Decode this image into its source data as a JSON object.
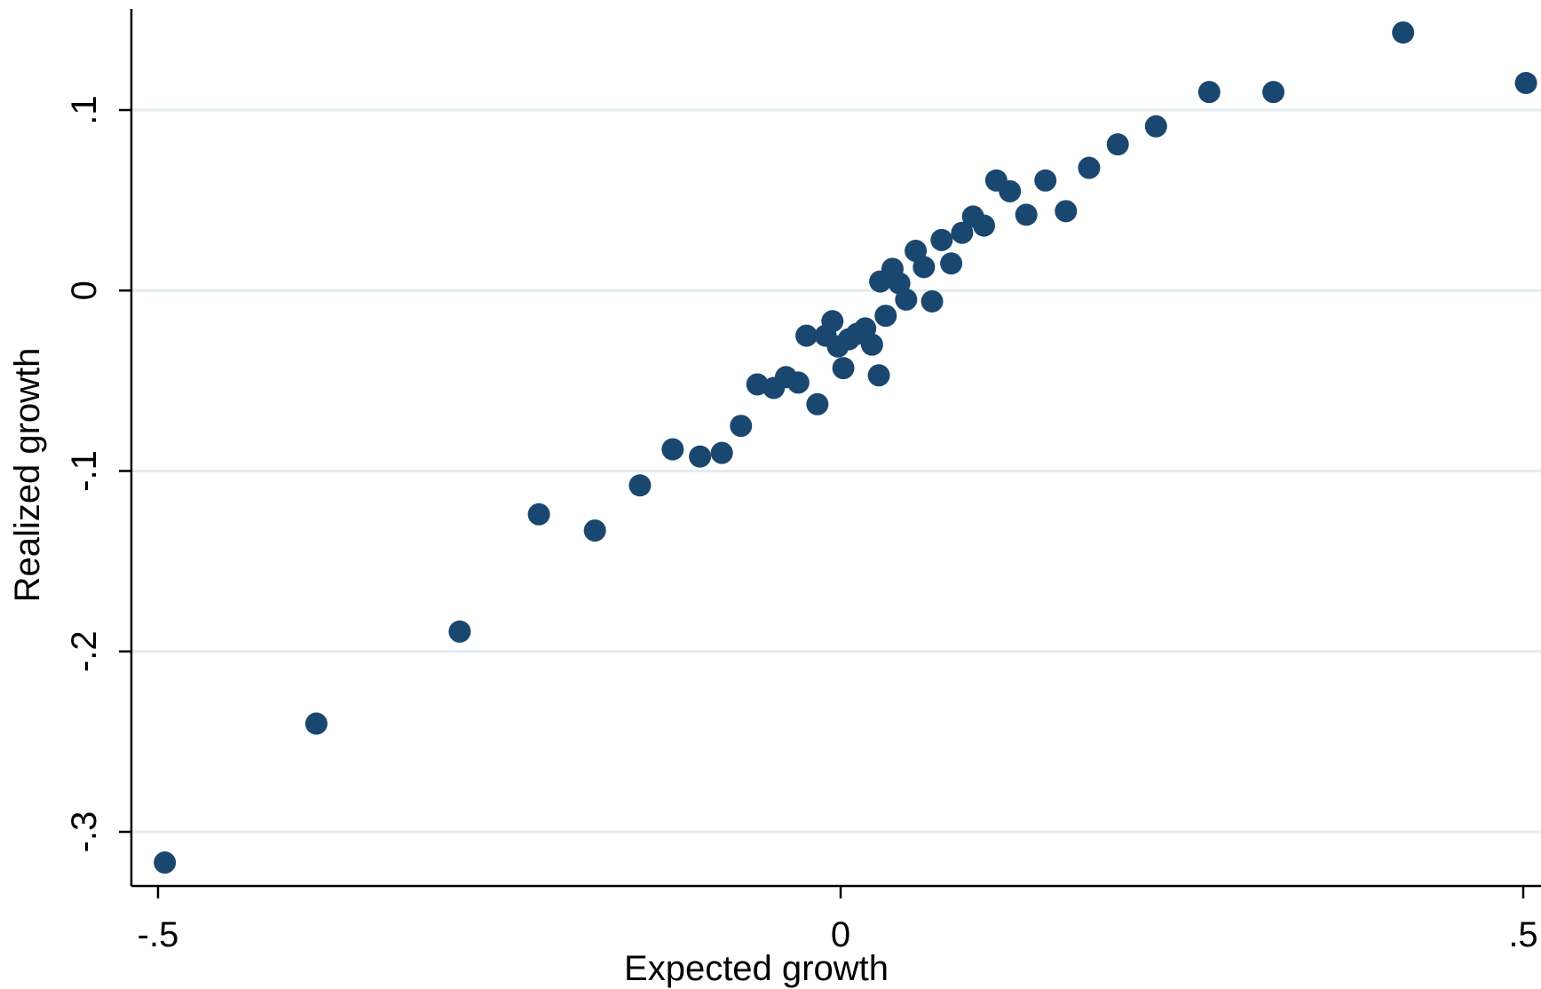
{
  "chart_data": {
    "type": "scatter",
    "title": "",
    "xlabel": "Expected growth",
    "ylabel": "Realized growth",
    "xlim": [
      -0.5,
      0.5
    ],
    "ylim": [
      -0.3,
      0.15
    ],
    "xticks": [
      {
        "value": -0.5,
        "label": "-.5"
      },
      {
        "value": 0,
        "label": "0"
      },
      {
        "value": 0.5,
        "label": ".5"
      }
    ],
    "yticks": [
      {
        "value": -0.3,
        "label": "-.3"
      },
      {
        "value": -0.2,
        "label": "-.2"
      },
      {
        "value": -0.1,
        "label": "-.1"
      },
      {
        "value": 0,
        "label": "0"
      },
      {
        "value": 0.1,
        "label": ".1"
      }
    ],
    "grid": "horizontal",
    "legend": "none",
    "marker_color": "#1a476f",
    "points": [
      {
        "x": -0.495,
        "y": -0.317
      },
      {
        "x": -0.384,
        "y": -0.24
      },
      {
        "x": -0.279,
        "y": -0.189
      },
      {
        "x": -0.221,
        "y": -0.124
      },
      {
        "x": -0.18,
        "y": -0.133
      },
      {
        "x": -0.147,
        "y": -0.108
      },
      {
        "x": -0.123,
        "y": -0.088
      },
      {
        "x": -0.103,
        "y": -0.092
      },
      {
        "x": -0.087,
        "y": -0.09
      },
      {
        "x": -0.073,
        "y": -0.075
      },
      {
        "x": -0.061,
        "y": -0.052
      },
      {
        "x": -0.049,
        "y": -0.054
      },
      {
        "x": -0.04,
        "y": -0.048
      },
      {
        "x": -0.031,
        "y": -0.051
      },
      {
        "x": -0.025,
        "y": -0.025
      },
      {
        "x": -0.017,
        "y": -0.063
      },
      {
        "x": -0.011,
        "y": -0.025
      },
      {
        "x": -0.006,
        "y": -0.017
      },
      {
        "x": -0.002,
        "y": -0.031
      },
      {
        "x": 0.002,
        "y": -0.043
      },
      {
        "x": 0.006,
        "y": -0.027
      },
      {
        "x": 0.012,
        "y": -0.024
      },
      {
        "x": 0.018,
        "y": -0.021
      },
      {
        "x": 0.023,
        "y": -0.03
      },
      {
        "x": 0.028,
        "y": -0.047
      },
      {
        "x": 0.029,
        "y": 0.005
      },
      {
        "x": 0.033,
        "y": -0.014
      },
      {
        "x": 0.038,
        "y": 0.012
      },
      {
        "x": 0.043,
        "y": 0.004
      },
      {
        "x": 0.048,
        "y": -0.005
      },
      {
        "x": 0.055,
        "y": 0.022
      },
      {
        "x": 0.061,
        "y": 0.013
      },
      {
        "x": 0.067,
        "y": -0.006
      },
      {
        "x": 0.074,
        "y": 0.028
      },
      {
        "x": 0.081,
        "y": 0.015
      },
      {
        "x": 0.089,
        "y": 0.032
      },
      {
        "x": 0.097,
        "y": 0.041
      },
      {
        "x": 0.105,
        "y": 0.036
      },
      {
        "x": 0.114,
        "y": 0.061
      },
      {
        "x": 0.124,
        "y": 0.055
      },
      {
        "x": 0.136,
        "y": 0.042
      },
      {
        "x": 0.15,
        "y": 0.061
      },
      {
        "x": 0.165,
        "y": 0.044
      },
      {
        "x": 0.182,
        "y": 0.068
      },
      {
        "x": 0.203,
        "y": 0.081
      },
      {
        "x": 0.231,
        "y": 0.091
      },
      {
        "x": 0.27,
        "y": 0.11
      },
      {
        "x": 0.317,
        "y": 0.11
      },
      {
        "x": 0.412,
        "y": 0.143
      },
      {
        "x": 0.502,
        "y": 0.115
      }
    ]
  }
}
